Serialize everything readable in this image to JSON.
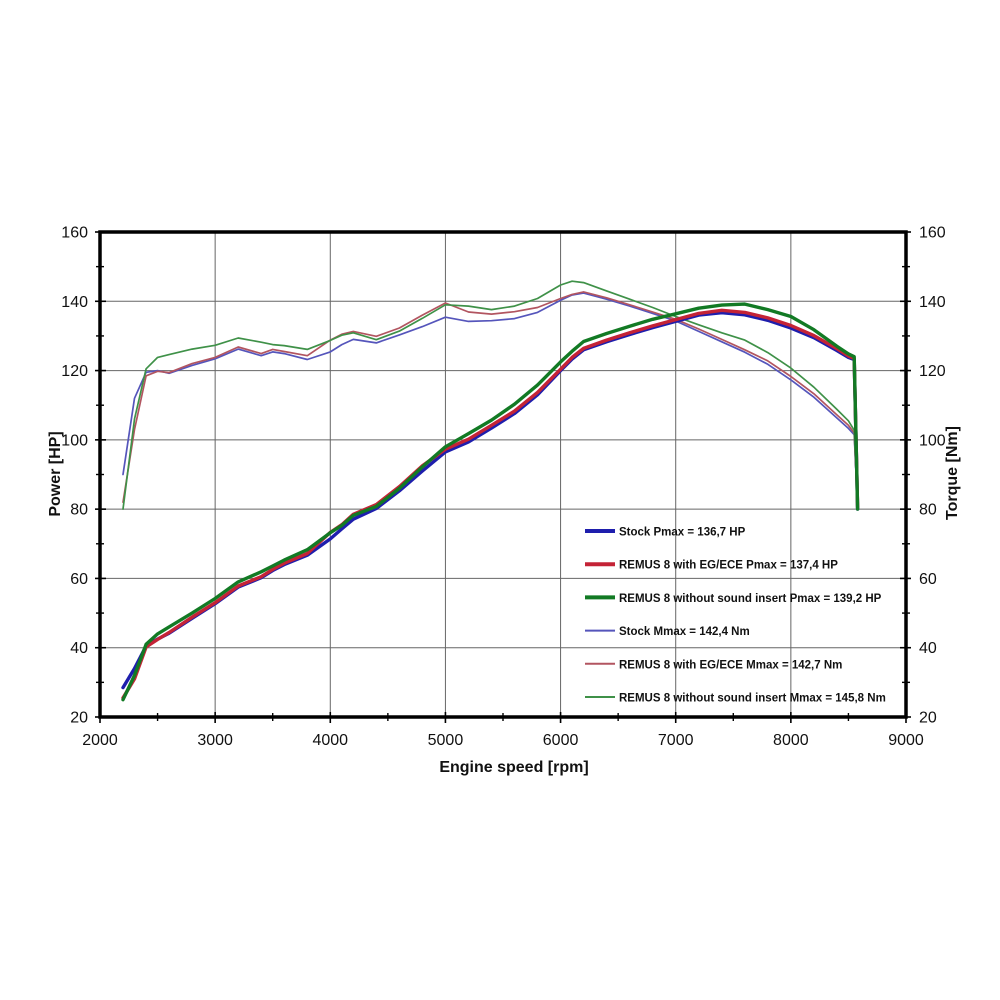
{
  "chart_data": {
    "type": "line",
    "title": "",
    "xlabel": "Engine speed [rpm]",
    "ylabel_left": "Power [HP]",
    "ylabel_right": "Torque [Nm]",
    "xlim": [
      2000,
      9000
    ],
    "ylim": [
      20,
      160
    ],
    "x_major_ticks": [
      2000,
      3000,
      4000,
      5000,
      6000,
      7000,
      8000,
      9000
    ],
    "x_minor_step": 500,
    "y_major_ticks": [
      20,
      40,
      60,
      80,
      100,
      120,
      140,
      160
    ],
    "y_minor_step": 10,
    "grid": "major",
    "grid_color": "#666666",
    "frame_color": "#000000",
    "legend_position": "inside-lower-right",
    "x": [
      2200,
      2300,
      2400,
      2500,
      2600,
      2800,
      3000,
      3200,
      3400,
      3500,
      3600,
      3800,
      4000,
      4100,
      4200,
      4400,
      4600,
      4800,
      5000,
      5200,
      5400,
      5600,
      5800,
      6000,
      6100,
      6200,
      6400,
      6600,
      6800,
      7000,
      7200,
      7400,
      7600,
      7800,
      8000,
      8200,
      8400,
      8500,
      8550,
      8580
    ],
    "series": [
      {
        "name": "power-stock",
        "label": "Stock Pmax = 136,7 HP",
        "unit": "HP",
        "axis": "left",
        "color": "#1e1ead",
        "thick": true,
        "values": [
          28.5,
          34,
          40.5,
          42.5,
          44.2,
          48.5,
          52.7,
          57.5,
          60.2,
          62.3,
          64,
          66.7,
          71.4,
          74.3,
          77.1,
          80.2,
          85.3,
          91,
          96.5,
          99.4,
          103.4,
          107.6,
          113,
          120,
          123.3,
          126,
          128.3,
          130.4,
          132.4,
          134.2,
          136,
          136.7,
          136.1,
          134.5,
          132.3,
          129.5,
          125.8,
          123.8,
          123.2,
          80
        ]
      },
      {
        "name": "power-remus-eg-ece",
        "label": "REMUS 8 with EG/ECE Pmax = 137,4 HP",
        "unit": "HP",
        "axis": "left",
        "color": "#c42336",
        "thick": true,
        "values": [
          25.5,
          31,
          40.2,
          42.4,
          44.4,
          48.8,
          53,
          57.8,
          60.5,
          62.6,
          64.4,
          67.2,
          73.3,
          75.5,
          78.5,
          81.3,
          86.5,
          92.5,
          97.3,
          100.2,
          104.2,
          108.3,
          113.7,
          120.4,
          123.8,
          126.4,
          128.8,
          130.9,
          132.9,
          134.7,
          136.5,
          137.4,
          136.8,
          135.2,
          133,
          130.1,
          126.3,
          124.2,
          123.5,
          80.5
        ]
      },
      {
        "name": "power-remus-no-sound-insert",
        "label": "REMUS 8 without sound insert Pmax = 139,2 HP",
        "unit": "HP",
        "axis": "left",
        "color": "#127a24",
        "thick": true,
        "values": [
          25,
          32,
          41,
          44,
          46,
          50,
          54.2,
          59,
          61.9,
          63.6,
          65.3,
          68.3,
          73.2,
          75.3,
          78.2,
          80.8,
          86,
          92.2,
          98,
          101.8,
          105.7,
          110.3,
          115.8,
          122.5,
          125.6,
          128.4,
          130.7,
          132.8,
          134.8,
          136.4,
          138,
          138.9,
          139.2,
          137.6,
          135.6,
          131.8,
          127,
          124.8,
          124,
          80
        ]
      },
      {
        "name": "torque-stock",
        "label": "Stock Mmax = 142,4 Nm",
        "unit": "Nm",
        "axis": "right",
        "color": "#5555bb",
        "thick": false,
        "values": [
          90,
          112,
          119.5,
          120,
          119.2,
          121.5,
          123.4,
          126.2,
          124.3,
          125.4,
          124.9,
          123.2,
          125.4,
          127.5,
          129,
          128,
          130.3,
          132.7,
          135.4,
          134.2,
          134.4,
          135,
          136.8,
          140.3,
          141.8,
          142.4,
          140.6,
          138.6,
          136.5,
          134.3,
          131.3,
          128.3,
          125.3,
          121.8,
          117.3,
          112.3,
          106.3,
          103.3,
          101.5,
          80.5
        ]
      },
      {
        "name": "torque-remus-eg-ece",
        "label": "REMUS 8 with EG/ECE Mmax = 142,7 Nm",
        "unit": "Nm",
        "axis": "right",
        "color": "#b25560",
        "thick": false,
        "values": [
          82,
          103,
          118.5,
          119.8,
          119.4,
          122,
          123.8,
          126.8,
          124.9,
          126.1,
          125.5,
          124.3,
          128.8,
          130.5,
          131.3,
          129.9,
          132.3,
          136,
          139.5,
          136.9,
          136.3,
          137,
          138.2,
          140.8,
          142,
          142.7,
          141,
          139,
          136.9,
          134.8,
          132,
          129,
          126,
          122.8,
          118.3,
          113.3,
          107.2,
          104.2,
          102,
          81
        ]
      },
      {
        "name": "torque-remus-no-sound-insert",
        "label": "REMUS 8 without sound insert Mmax = 145,8 Nm",
        "unit": "Nm",
        "axis": "right",
        "color": "#3f9148",
        "thick": false,
        "values": [
          80,
          106,
          120.5,
          123.8,
          124.6,
          126.2,
          127.3,
          129.4,
          128.2,
          127.5,
          127.2,
          126.1,
          128.7,
          130.2,
          130.9,
          128.9,
          131.4,
          135.1,
          139,
          138.6,
          137.6,
          138.6,
          140.8,
          144.7,
          145.8,
          145.4,
          143,
          140.6,
          138.2,
          135.6,
          133.2,
          130.9,
          128.8,
          125.2,
          120.7,
          115.2,
          108.8,
          105.5,
          102.8,
          80
        ]
      }
    ]
  }
}
